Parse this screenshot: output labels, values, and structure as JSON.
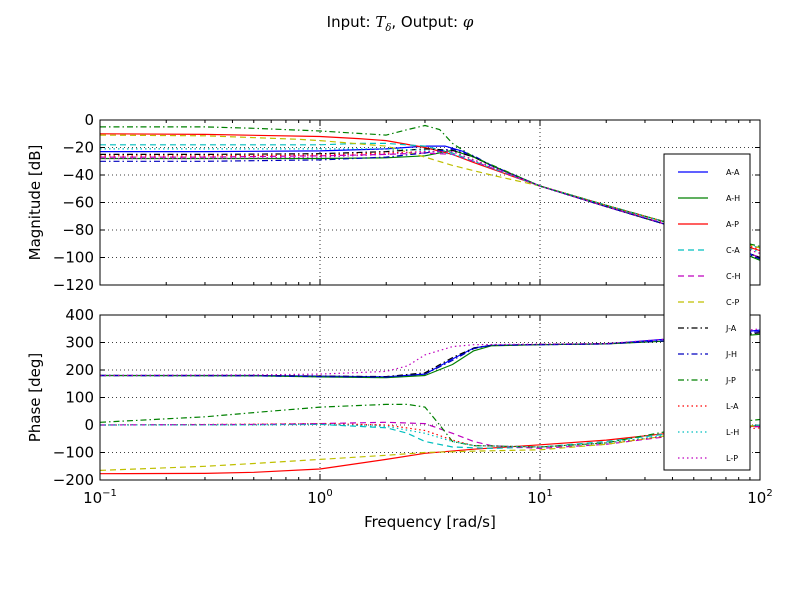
{
  "title": {
    "prefix": "Input: ",
    "input_symbol": "T",
    "input_subscript": "δ",
    "middle": ", Output: ",
    "output_symbol": "φ"
  },
  "chart_data": [
    {
      "type": "line",
      "panel": "magnitude",
      "xscale": "log",
      "xlim": [
        0.1,
        100
      ],
      "ylim": [
        -120,
        0
      ],
      "xlabel": "",
      "ylabel": "Magnitude [dB]",
      "yticks": [
        0,
        -20,
        -40,
        -60,
        -80,
        -100,
        -120
      ],
      "grid": true,
      "series": [
        {
          "name": "A-A",
          "color": "#0000ff",
          "dash": "solid",
          "x": [
            0.1,
            0.3,
            1,
            2,
            3,
            3.7,
            4.5,
            6,
            10,
            20,
            50,
            100
          ],
          "y": [
            -23,
            -23,
            -22.5,
            -21,
            -19,
            -19,
            -23,
            -33,
            -48,
            -63,
            -82,
            -100
          ]
        },
        {
          "name": "A-H",
          "color": "#008000",
          "dash": "solid",
          "x": [
            0.1,
            0.3,
            1,
            2,
            3,
            4,
            5,
            6,
            10,
            20,
            50,
            100
          ],
          "y": [
            -28,
            -28,
            -28,
            -27.5,
            -26,
            -22,
            -27,
            -33,
            -48,
            -63,
            -82,
            -102
          ]
        },
        {
          "name": "A-P",
          "color": "#ff0000",
          "dash": "solid",
          "x": [
            0.1,
            0.3,
            1,
            1.5,
            2,
            3,
            4,
            5,
            10,
            20,
            50,
            100
          ],
          "y": [
            -10,
            -10.5,
            -12,
            -13.5,
            -15,
            -20,
            -25,
            -31,
            -48,
            -62,
            -80,
            -95
          ]
        },
        {
          "name": "C-A",
          "color": "#00bfbf",
          "dash": "dashed",
          "x": [
            0.1,
            0.3,
            1,
            1.5,
            2,
            3,
            4,
            5,
            10,
            20,
            50,
            100
          ],
          "y": [
            -18,
            -18,
            -18,
            -17,
            -17,
            -19,
            -24,
            -30,
            -48,
            -62,
            -80,
            -93
          ]
        },
        {
          "name": "C-H",
          "color": "#bf00bf",
          "dash": "dashed",
          "x": [
            0.1,
            0.3,
            1,
            2,
            3,
            4,
            5,
            10,
            20,
            50,
            100
          ],
          "y": [
            -27,
            -27,
            -26,
            -25,
            -24,
            -25,
            -30,
            -48,
            -63,
            -82,
            -100
          ]
        },
        {
          "name": "C-P",
          "color": "#bfbf00",
          "dash": "dashed",
          "x": [
            0.1,
            0.3,
            0.8,
            1,
            2,
            3,
            4,
            6,
            10,
            20,
            50,
            100
          ],
          "y": [
            -11,
            -11.5,
            -14,
            -15,
            -19,
            -27,
            -33,
            -40,
            -48,
            -62,
            -80,
            -93
          ]
        },
        {
          "name": "J-A",
          "color": "#000000",
          "dash": "dashdot",
          "x": [
            0.1,
            0.3,
            1,
            2,
            3,
            4,
            5,
            6,
            10,
            20,
            50,
            100
          ],
          "y": [
            -25,
            -25,
            -24.5,
            -23,
            -21,
            -22,
            -27,
            -33,
            -48,
            -63,
            -82,
            -100
          ]
        },
        {
          "name": "J-H",
          "color": "#0000bf",
          "dash": "dashdot",
          "x": [
            0.1,
            0.3,
            1,
            2,
            3,
            4,
            5,
            6,
            10,
            20,
            50,
            100
          ],
          "y": [
            -30,
            -30,
            -29,
            -27,
            -24,
            -21,
            -26,
            -33,
            -48,
            -63,
            -82,
            -101
          ]
        },
        {
          "name": "J-P",
          "color": "#008000",
          "dash": "dashdot",
          "x": [
            0.1,
            0.2,
            0.3,
            0.5,
            1,
            2,
            2.5,
            3,
            3.5,
            4,
            5,
            10,
            20,
            50,
            100
          ],
          "y": [
            -5,
            -5,
            -5,
            -6,
            -8,
            -11,
            -7,
            -4,
            -7,
            -17,
            -27,
            -48,
            -62,
            -80,
            -92
          ]
        },
        {
          "name": "L-A",
          "color": "#ff0000",
          "dash": "dotted",
          "x": [
            0.1,
            0.3,
            1,
            2,
            3,
            4,
            5,
            10,
            20,
            50,
            100
          ],
          "y": [
            -26,
            -26,
            -25.5,
            -24,
            -23,
            -23,
            -29,
            -48,
            -62,
            -80,
            -94
          ]
        },
        {
          "name": "L-H",
          "color": "#00bfbf",
          "dash": "dotted",
          "x": [
            0.1,
            0.3,
            1,
            2,
            3,
            4,
            5,
            10,
            20,
            50,
            100
          ],
          "y": [
            -21,
            -21,
            -21,
            -21,
            -22,
            -25,
            -30,
            -48,
            -62,
            -80,
            -96
          ]
        },
        {
          "name": "L-P",
          "color": "#bf00bf",
          "dash": "dotted",
          "x": [
            0.1,
            0.3,
            1,
            2,
            3,
            4,
            5,
            10,
            20,
            50,
            100
          ],
          "y": [
            -28,
            -28,
            -27,
            -25,
            -23,
            -23,
            -29,
            -48,
            -63,
            -81,
            -97
          ]
        }
      ]
    },
    {
      "type": "line",
      "panel": "phase",
      "xscale": "log",
      "xlim": [
        0.1,
        100
      ],
      "ylim": [
        -200,
        400
      ],
      "xlabel": "Frequency [rad/s]",
      "ylabel": "Phase [deg]",
      "xticks": [
        {
          "value": 0.1,
          "base": "10",
          "exponent": "−1"
        },
        {
          "value": 1,
          "base": "10",
          "exponent": "0"
        },
        {
          "value": 10,
          "base": "10",
          "exponent": "1"
        },
        {
          "value": 100,
          "base": "10",
          "exponent": "2"
        }
      ],
      "yticks": [
        400,
        300,
        200,
        100,
        0,
        -100,
        -200
      ],
      "grid": true,
      "legend": "right",
      "series": [
        {
          "name": "A-A",
          "color": "#0000ff",
          "dash": "solid",
          "x": [
            0.1,
            0.5,
            1,
            2,
            3,
            4,
            5,
            6,
            10,
            20,
            50,
            100
          ],
          "y": [
            180,
            180,
            178,
            175,
            185,
            240,
            280,
            290,
            292,
            295,
            320,
            345
          ]
        },
        {
          "name": "A-H",
          "color": "#008000",
          "dash": "solid",
          "x": [
            0.1,
            0.5,
            1,
            2,
            3,
            4,
            5,
            6,
            10,
            20,
            50,
            100
          ],
          "y": [
            180,
            179,
            175,
            172,
            180,
            220,
            270,
            288,
            292,
            295,
            310,
            330
          ]
        },
        {
          "name": "A-P",
          "color": "#ff0000",
          "dash": "solid",
          "x": [
            0.1,
            0.3,
            0.5,
            1,
            2,
            3,
            5,
            10,
            20,
            50,
            100
          ],
          "y": [
            -177,
            -176,
            -172,
            -160,
            -125,
            -103,
            -88,
            -72,
            -55,
            -20,
            -3
          ]
        },
        {
          "name": "C-A",
          "color": "#00bfbf",
          "dash": "dashed",
          "x": [
            0.1,
            0.5,
            1,
            2,
            2.5,
            3,
            4,
            6,
            10,
            20,
            50,
            100
          ],
          "y": [
            0,
            1,
            2,
            -10,
            -30,
            -60,
            -80,
            -85,
            -80,
            -60,
            -20,
            0
          ]
        },
        {
          "name": "C-H",
          "color": "#bf00bf",
          "dash": "dashed",
          "x": [
            0.1,
            0.5,
            1,
            2,
            3,
            4,
            5,
            6,
            10,
            20,
            50,
            100
          ],
          "y": [
            0,
            2,
            5,
            10,
            5,
            -30,
            -60,
            -75,
            -85,
            -70,
            -30,
            -5
          ]
        },
        {
          "name": "C-P",
          "color": "#bfbf00",
          "dash": "dashed",
          "x": [
            0.1,
            0.3,
            0.5,
            1,
            2,
            3,
            5,
            10,
            20,
            50,
            100
          ],
          "y": [
            -165,
            -150,
            -140,
            -125,
            -110,
            -100,
            -95,
            -90,
            -70,
            -25,
            0
          ]
        },
        {
          "name": "J-A",
          "color": "#000000",
          "dash": "dashdot",
          "x": [
            0.1,
            0.5,
            1,
            2,
            3,
            4,
            5,
            6,
            10,
            20,
            50,
            100
          ],
          "y": [
            180,
            180,
            178,
            176,
            190,
            245,
            280,
            290,
            293,
            296,
            310,
            335
          ]
        },
        {
          "name": "J-H",
          "color": "#0000bf",
          "dash": "dashdot",
          "x": [
            0.1,
            0.5,
            1,
            2,
            3,
            4,
            5,
            6,
            10,
            20,
            50,
            100
          ],
          "y": [
            180,
            179,
            176,
            174,
            185,
            235,
            278,
            290,
            292,
            295,
            312,
            340
          ]
        },
        {
          "name": "J-P",
          "color": "#008000",
          "dash": "dashdot",
          "x": [
            0.1,
            0.3,
            0.5,
            1,
            2,
            2.5,
            3,
            3.5,
            4,
            5,
            10,
            20,
            50,
            100
          ],
          "y": [
            10,
            30,
            45,
            65,
            75,
            75,
            65,
            0,
            -60,
            -75,
            -80,
            -65,
            -5,
            20
          ]
        },
        {
          "name": "L-A",
          "color": "#ff0000",
          "dash": "dotted",
          "x": [
            0.1,
            0.5,
            1,
            2,
            3,
            4,
            5,
            10,
            20,
            50,
            100
          ],
          "y": [
            0,
            3,
            5,
            0,
            -20,
            -55,
            -75,
            -80,
            -65,
            -30,
            -10
          ]
        },
        {
          "name": "L-H",
          "color": "#00bfbf",
          "dash": "dotted",
          "x": [
            0.1,
            0.5,
            1,
            2,
            3,
            4,
            5,
            10,
            20,
            50,
            100
          ],
          "y": [
            0,
            1,
            3,
            -5,
            -30,
            -60,
            -75,
            -80,
            -65,
            -25,
            0
          ]
        },
        {
          "name": "L-P",
          "color": "#bf00bf",
          "dash": "dotted",
          "x": [
            0.1,
            0.5,
            1,
            2,
            2.5,
            3,
            4,
            5,
            10,
            20,
            50,
            100
          ],
          "y": [
            180,
            182,
            185,
            195,
            215,
            255,
            285,
            292,
            294,
            296,
            320,
            350
          ]
        }
      ]
    }
  ]
}
